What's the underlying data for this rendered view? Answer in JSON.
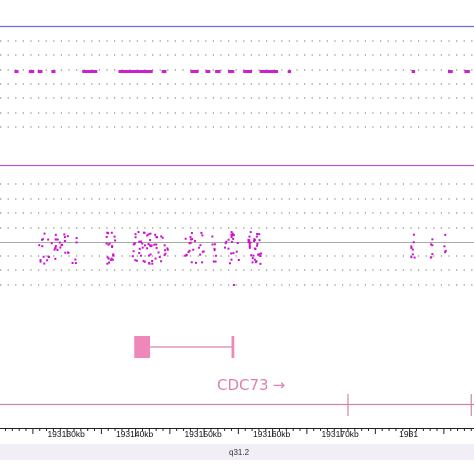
{
  "colors": {
    "track_border": "#6a6ae0",
    "track_border_2": "#b05cc8",
    "segment": "#cc22cc",
    "point": "#cc11cc",
    "gene": "#ee88bb",
    "gene_line": "#cc6699",
    "grid_dot": "#6b6b6b",
    "axis": "#222222",
    "ideogram_bg": "#f1eef6",
    "band_tick": "#cc88aa"
  },
  "gene": {
    "name": "CDC73",
    "strand_arrow": "→",
    "exons_kb": [
      [
        193139.8,
        193142.1
      ],
      [
        193154.0,
        193154.4
      ]
    ],
    "span_kb": [
      193139.8,
      193154.4
    ]
  },
  "segments_track": {
    "segments_kb": [
      [
        193122.3,
        193122.9
      ],
      [
        193124.4,
        193125.2
      ],
      [
        193125.7,
        193126.4
      ],
      [
        193127.7,
        193128.3
      ],
      [
        193132.2,
        193134.4
      ],
      [
        193137.5,
        193142.5
      ],
      [
        193143.8,
        193144.5
      ],
      [
        193148.0,
        193149.2
      ],
      [
        193150.2,
        193150.9
      ],
      [
        193151.6,
        193152.4
      ],
      [
        193153.5,
        193154.4
      ],
      [
        193155.7,
        193157.0
      ],
      [
        193158.1,
        193160.8
      ],
      [
        193162.2,
        193162.7
      ],
      [
        193180.3,
        193180.8
      ],
      [
        193185.6,
        193186.3
      ],
      [
        193188.0,
        193188.8
      ]
    ]
  },
  "axis": {
    "tick_labels": [
      "193130kb",
      "193140kb",
      "193150kb",
      "193160kb",
      "193170kb",
      "1931"
    ],
    "tick_values_kb": [
      193130,
      193140,
      193150,
      193160,
      193170,
      193180
    ],
    "band_label": "q31.2",
    "range_kb": [
      193120.2,
      193189.4
    ]
  },
  "scatter_track": {
    "clusters": [
      {
        "from_kb": 193125.5,
        "to_kb": 193131.5,
        "n": 40
      },
      {
        "from_kb": 193135.6,
        "to_kb": 193137.0,
        "n": 20
      },
      {
        "from_kb": 193139.4,
        "to_kb": 193144.7,
        "n": 55
      },
      {
        "from_kb": 193146.9,
        "to_kb": 193149.9,
        "n": 25
      },
      {
        "from_kb": 193151.0,
        "to_kb": 193151.7,
        "n": 8
      },
      {
        "from_kb": 193152.9,
        "to_kb": 193155.0,
        "n": 20
      },
      {
        "from_kb": 193156.3,
        "to_kb": 193158.4,
        "n": 35
      },
      {
        "from_kb": 193180.1,
        "to_kb": 193180.6,
        "n": 8
      },
      {
        "from_kb": 193182.9,
        "to_kb": 193183.2,
        "n": 6
      },
      {
        "from_kb": 193184.9,
        "to_kb": 193185.3,
        "n": 4
      }
    ]
  }
}
